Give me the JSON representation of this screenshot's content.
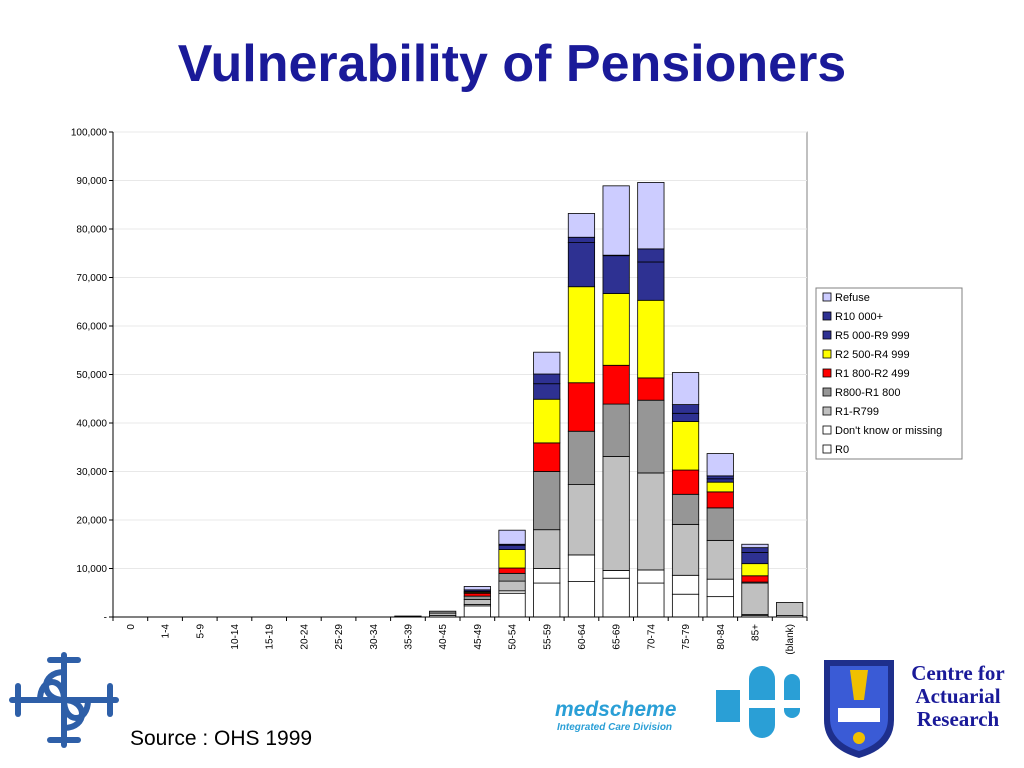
{
  "title": "Vulnerability of Pensioners",
  "source": "Source : OHS 1999",
  "logos": {
    "centre": [
      "Centre for",
      "Actuarial",
      "Research"
    ],
    "medscheme": "medscheme",
    "medscheme_sub": "Integrated Care Division"
  },
  "chart_data": {
    "type": "bar",
    "stacked": true,
    "categories": [
      "0",
      "1-4",
      "5-9",
      "10-14",
      "15-19",
      "20-24",
      "25-29",
      "30-34",
      "35-39",
      "40-45",
      "45-49",
      "50-54",
      "55-59",
      "60-64",
      "65-69",
      "70-74",
      "75-79",
      "80-84",
      "85+",
      "(blank)"
    ],
    "ylim": [
      0,
      100000
    ],
    "yticks": [
      0,
      10000,
      20000,
      30000,
      40000,
      50000,
      60000,
      70000,
      80000,
      90000,
      100000
    ],
    "ytick_labels": [
      "-",
      "10,000",
      "20,000",
      "30,000",
      "40,000",
      "50,000",
      "60,000",
      "70,000",
      "80,000",
      "90,000",
      "100,000"
    ],
    "grid": true,
    "legend_position": "right",
    "series": [
      {
        "name": "R0",
        "color": "#ffffff",
        "values": [
          0,
          0,
          0,
          0,
          0,
          0,
          0,
          0,
          0,
          300,
          2300,
          4900,
          7000,
          7300,
          8000,
          7000,
          4700,
          4200,
          300,
          300
        ]
      },
      {
        "name": "Don't know or missing",
        "color": "#ffffff",
        "values": [
          0,
          0,
          0,
          0,
          0,
          0,
          0,
          0,
          0,
          0,
          300,
          500,
          3000,
          5500,
          1600,
          2700,
          3900,
          3600,
          200,
          0
        ]
      },
      {
        "name": "R1-R799",
        "color": "#c0c0c0",
        "values": [
          0,
          0,
          0,
          0,
          0,
          0,
          0,
          0,
          0,
          500,
          1000,
          2000,
          8000,
          14500,
          23500,
          20000,
          10500,
          8000,
          6500,
          2700
        ]
      },
      {
        "name": "R800-R1 800",
        "color": "#969696",
        "values": [
          0,
          0,
          0,
          0,
          0,
          0,
          0,
          0,
          100,
          400,
          700,
          1600,
          12000,
          11000,
          10800,
          15000,
          6200,
          6700,
          200,
          0
        ]
      },
      {
        "name": "R1 800-R2 499",
        "color": "#ff0000",
        "values": [
          0,
          0,
          0,
          0,
          0,
          0,
          0,
          0,
          0,
          0,
          600,
          1100,
          5900,
          10000,
          8000,
          4600,
          5000,
          3300,
          1300,
          0
        ]
      },
      {
        "name": "R2 500-R4 999",
        "color": "#ffff00",
        "values": [
          0,
          0,
          0,
          0,
          0,
          0,
          0,
          0,
          0,
          0,
          200,
          3800,
          9000,
          19800,
          14800,
          16000,
          10000,
          2000,
          2500,
          0
        ]
      },
      {
        "name": "R5 000-R9 999",
        "color": "#2e3192",
        "values": [
          0,
          0,
          0,
          0,
          0,
          0,
          0,
          0,
          100,
          0,
          200,
          900,
          3200,
          9100,
          7800,
          7900,
          1700,
          700,
          2300,
          0
        ]
      },
      {
        "name": "R10 000+",
        "color": "#2e3192",
        "values": [
          0,
          0,
          0,
          0,
          0,
          0,
          0,
          0,
          0,
          0,
          300,
          200,
          2000,
          1100,
          100,
          2700,
          1800,
          600,
          1000,
          0
        ]
      },
      {
        "name": "Refuse",
        "color": "#ccccff",
        "values": [
          0,
          0,
          0,
          0,
          0,
          0,
          0,
          0,
          0,
          0,
          700,
          2900,
          4500,
          4900,
          14300,
          13700,
          6600,
          4600,
          700,
          0
        ]
      }
    ]
  }
}
